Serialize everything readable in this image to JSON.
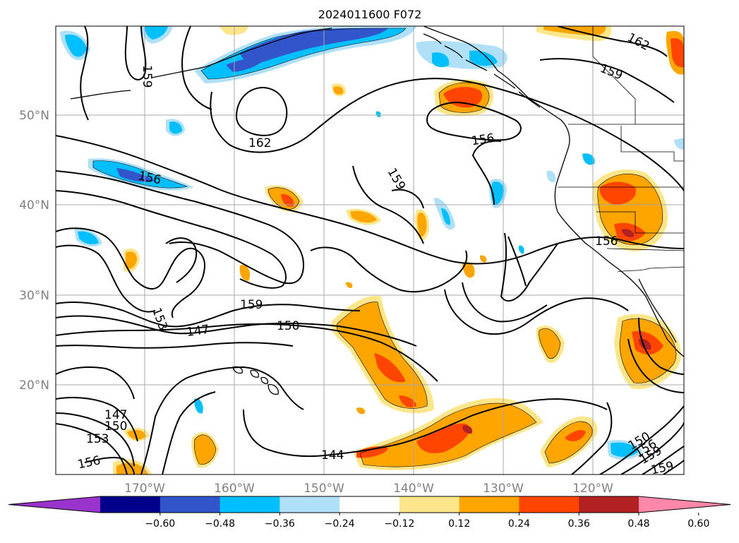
{
  "title": "2024011600 F072",
  "lat_labels": [
    "50°N",
    "40°N",
    "30°N",
    "20°N"
  ],
  "lon_labels": [
    "170°W",
    "160°W",
    "150°W",
    "140°W",
    "130°W",
    "120°W"
  ],
  "contour_labels": [
    "159",
    "162",
    "159",
    "156",
    "156",
    "159",
    "162",
    "159",
    "153",
    "147",
    "150",
    "156",
    "147",
    "150",
    "153",
    "156",
    "144",
    "150",
    "156",
    "159",
    "159"
  ],
  "colorbar": {
    "tick_labels": [
      "−0.60",
      "−0.48",
      "−0.36",
      "−0.24",
      "−0.12",
      "0.12",
      "0.24",
      "0.36",
      "0.48",
      "0.60"
    ],
    "colors": [
      "#9933cc",
      "#00008b",
      "#3355cc",
      "#00bfff",
      "#afe0f8",
      "#ffffff",
      "#fde68a",
      "#ffa500",
      "#ff4500",
      "#b22222",
      "#ff88aa"
    ]
  }
}
